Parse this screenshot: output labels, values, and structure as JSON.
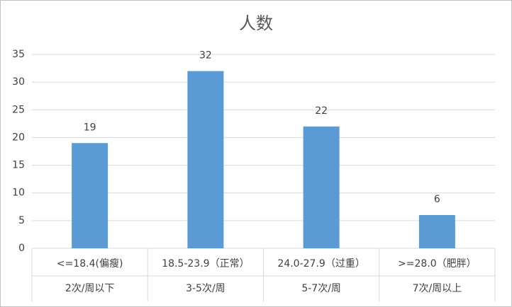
{
  "chart_data": {
    "type": "bar",
    "title": "人数",
    "categories": [
      "<=18.4(偏瘦)",
      "18.5-23.9（正常）",
      "24.0-27.9（过重）",
      ">=28.0（肥胖）"
    ],
    "categories2": [
      "2次/周以下",
      "3-5次/周",
      "5-7次/周",
      "7次/周以上"
    ],
    "values": [
      19,
      32,
      22,
      6
    ],
    "color": "#5b9bd5",
    "ylim": [
      0,
      35
    ],
    "yticks": [
      0,
      5,
      10,
      15,
      20,
      25,
      30,
      35
    ],
    "grid": true
  }
}
